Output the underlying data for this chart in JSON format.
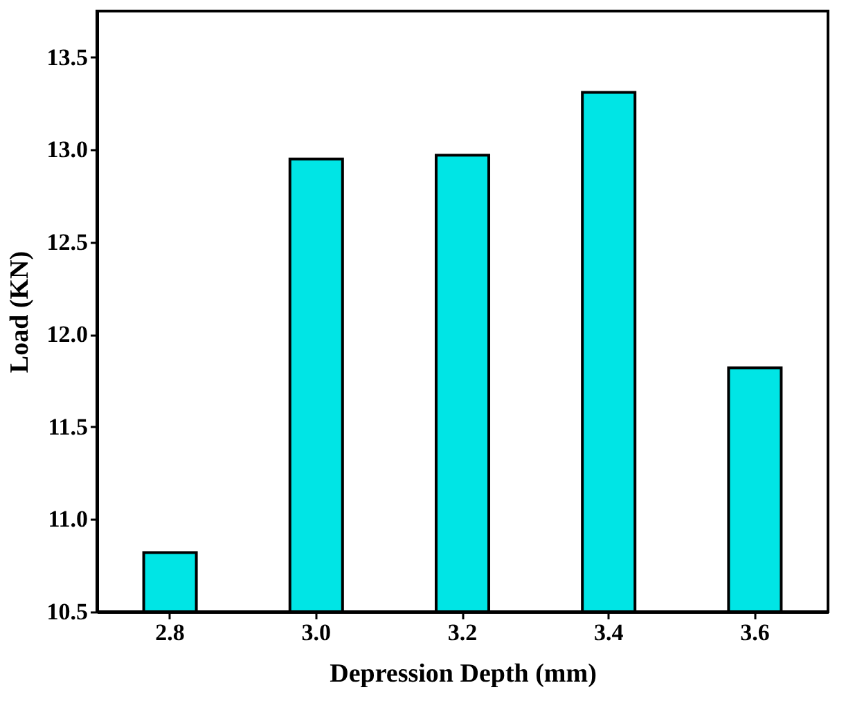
{
  "chart_data": {
    "type": "bar",
    "xlabel": "Depression Depth (mm)",
    "ylabel": "Load (KN)",
    "categories": [
      "2.8",
      "3.0",
      "3.2",
      "3.4",
      "3.6"
    ],
    "values": [
      10.82,
      12.95,
      12.97,
      13.31,
      11.82
    ],
    "color": "#00e5e5",
    "ylim": [
      10.5,
      13.75
    ],
    "yticks": [
      10.5,
      {
        "value": 11,
        "label": "11.0"
      },
      11.5,
      {
        "value": 12,
        "label": "12.0"
      },
      12.5,
      {
        "value": 13,
        "label": "13.0"
      },
      13.5
    ],
    "grid": false
  }
}
